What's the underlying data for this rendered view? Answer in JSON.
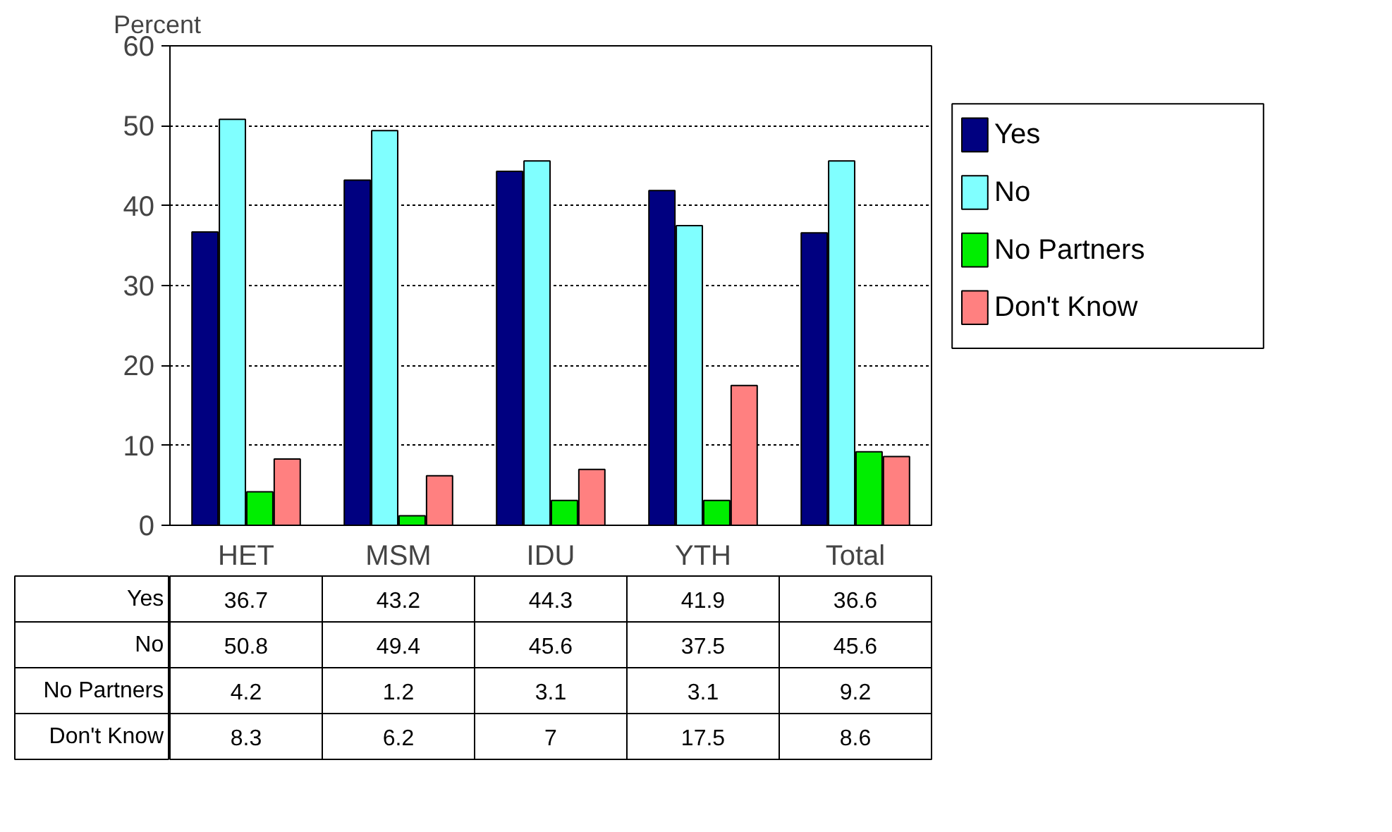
{
  "chart_data": {
    "type": "bar",
    "ylabel": "Percent",
    "categories": [
      "HET",
      "MSM",
      "IDU",
      "YTH",
      "Total"
    ],
    "series": [
      {
        "name": "Yes",
        "color": "#000080",
        "values": [
          36.7,
          43.2,
          44.3,
          41.9,
          36.6
        ]
      },
      {
        "name": "No",
        "color": "#80ffff",
        "values": [
          50.8,
          49.4,
          45.6,
          37.5,
          45.6
        ]
      },
      {
        "name": "No Partners",
        "color": "#00ee00",
        "values": [
          4.2,
          1.2,
          3.1,
          3.1,
          9.2
        ]
      },
      {
        "name": "Don't Know",
        "color": "#ff8080",
        "values": [
          8.3,
          6.2,
          7,
          17.5,
          8.6
        ]
      }
    ],
    "ylim": [
      0,
      60
    ],
    "yticks": [
      0,
      10,
      20,
      30,
      40,
      50,
      60
    ],
    "grid": "y",
    "legend": "right",
    "data_labels": true
  }
}
